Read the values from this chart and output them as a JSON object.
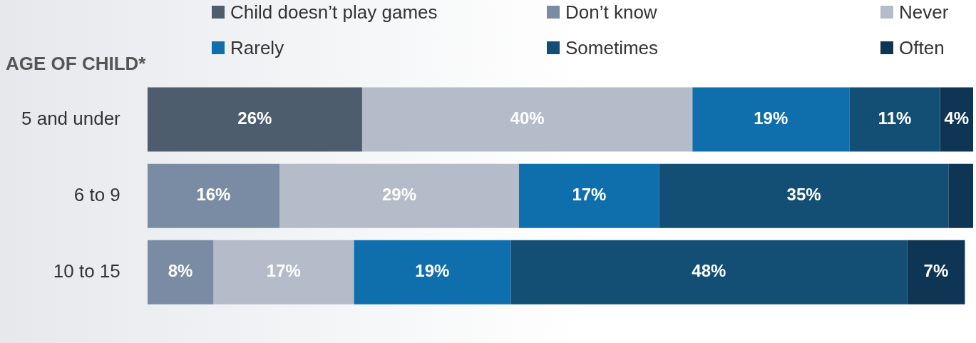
{
  "chart_data": {
    "type": "bar",
    "orientation": "horizontal",
    "stacked": true,
    "ylabel": "AGE OF CHILD*",
    "categories": [
      "5 and under",
      "6 to 9",
      "10 to 15"
    ],
    "xlim": [
      0,
      100
    ],
    "tick_labels": "y",
    "legend": "top",
    "grid": false,
    "series": [
      {
        "name": "Child doesn’t play games",
        "color": "#4e5d6e",
        "values": [
          26,
          null,
          null
        ],
        "value_labels": [
          "26%",
          null,
          null
        ]
      },
      {
        "name": "Don’t know",
        "color": "#7a8ca3",
        "values": [
          null,
          16,
          8
        ],
        "value_labels": [
          null,
          "16%",
          "8%"
        ]
      },
      {
        "name": "Never",
        "color": "#b3bcc8",
        "values": [
          40,
          29,
          17
        ],
        "value_labels": [
          "40%",
          "29%",
          "17%"
        ]
      },
      {
        "name": "Rarely",
        "color": "#0f6fad",
        "values": [
          19,
          17,
          19
        ],
        "value_labels": [
          "19%",
          "17%",
          "19%"
        ]
      },
      {
        "name": "Sometimes",
        "color": "#134f74",
        "values": [
          11,
          35,
          48
        ],
        "value_labels": [
          "11%",
          "35%",
          "48%"
        ]
      },
      {
        "name": "Often",
        "color": "#0e3553",
        "values": [
          4,
          3,
          7
        ],
        "value_labels": [
          "4%",
          null,
          "7%"
        ]
      }
    ]
  }
}
